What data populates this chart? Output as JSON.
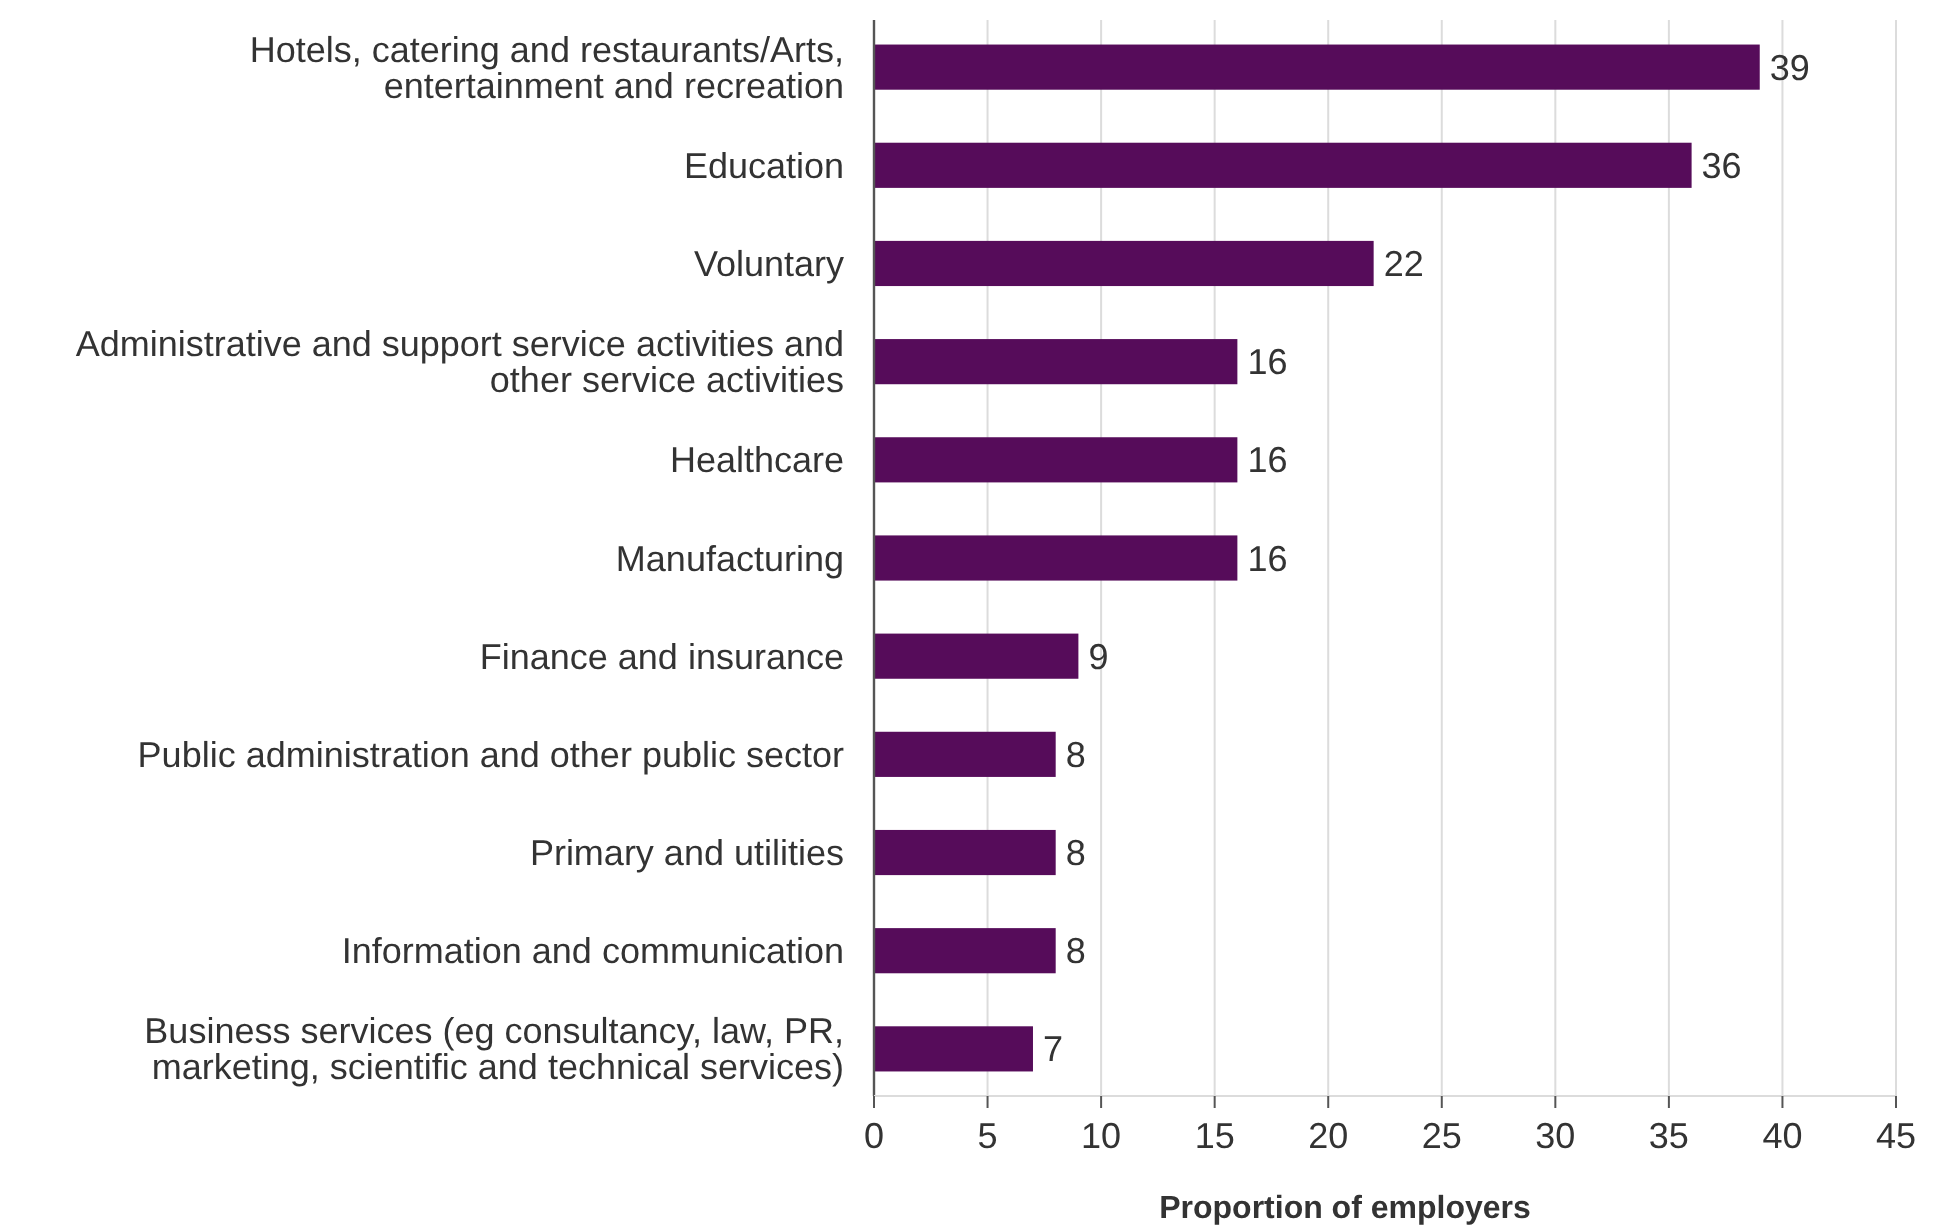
{
  "chart_data": {
    "type": "bar",
    "orientation": "horizontal",
    "xlabel": "Proportion of employers",
    "categories": [
      "Hotels, catering and restaurants/Arts, entertainment and recreation",
      "Education",
      "Voluntary",
      "Administrative and support service activities and other service activities",
      "Healthcare",
      "Manufacturing",
      "Finance and insurance",
      "Public administration and other public sector",
      "Primary and utilities",
      "Information and communication",
      "Business services (eg consultancy, law, PR, marketing, scientific and technical services)"
    ],
    "values": [
      39,
      36,
      22,
      16,
      16,
      16,
      9,
      8,
      8,
      8,
      7
    ],
    "color": "#560c5a",
    "xlim": [
      0,
      45
    ],
    "xticks": [
      0,
      5,
      10,
      15,
      20,
      25,
      30,
      35,
      40,
      45
    ],
    "grid": "x",
    "data_labels": true
  }
}
